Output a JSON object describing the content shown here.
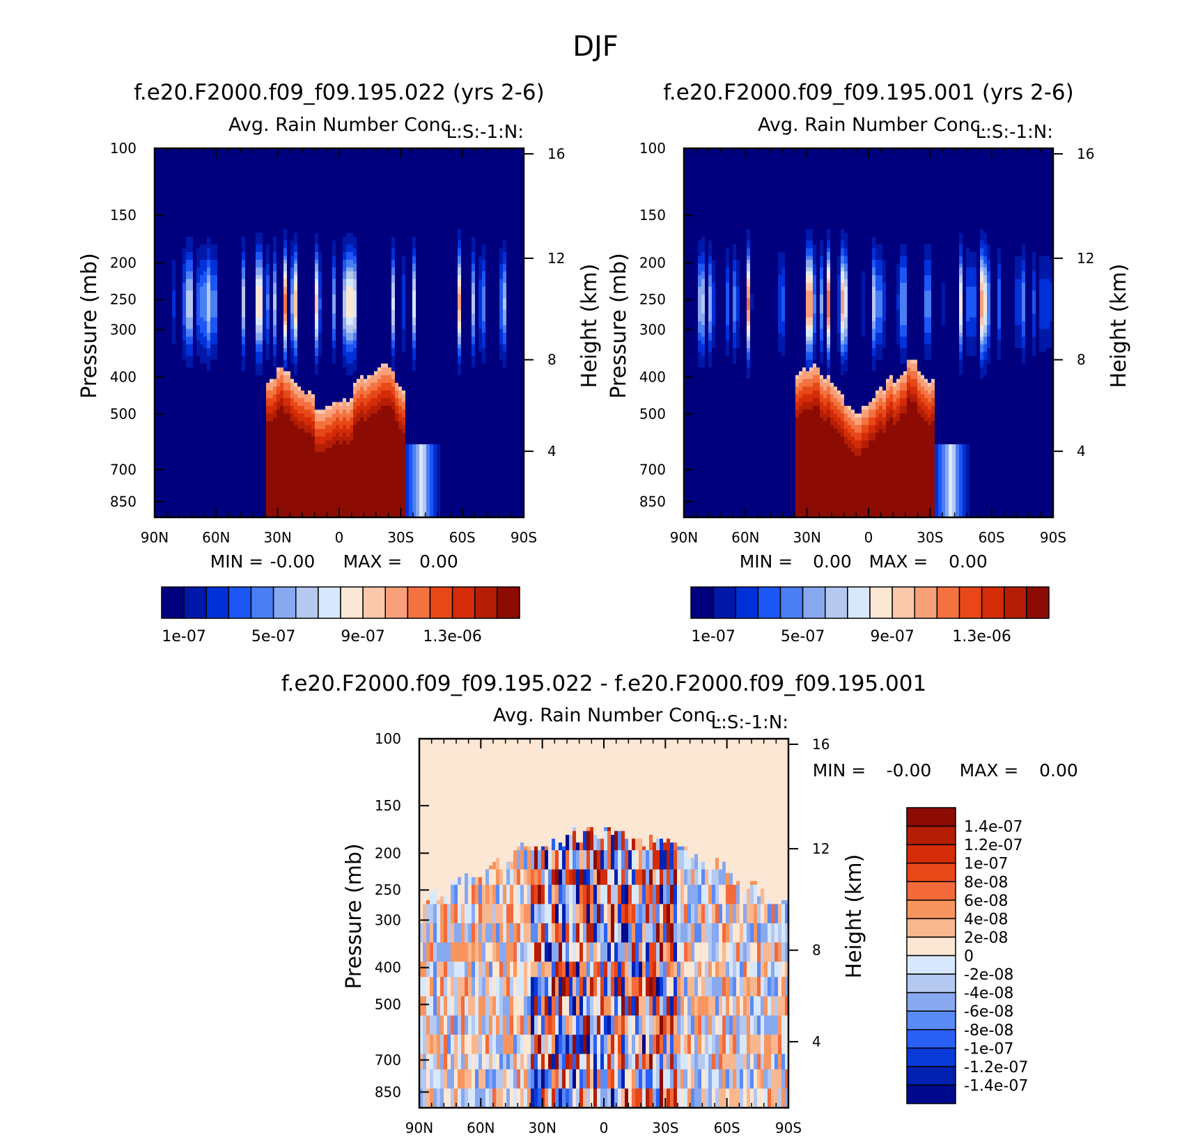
{
  "figure": {
    "title": "DJF"
  },
  "colors": {
    "abs_scale": [
      "#00007f",
      "#0018a8",
      "#0030d8",
      "#1c56f4",
      "#4a7ef4",
      "#88a8f0",
      "#b4c8f0",
      "#d8e8fc",
      "#fce6d4",
      "#fcc8ac",
      "#f8a07a",
      "#f47240",
      "#e84818",
      "#d42c08",
      "#b41e04",
      "#8c0c04"
    ],
    "diff_scale": [
      "#8c0c04",
      "#b41e04",
      "#d42c08",
      "#e84818",
      "#f46a3a",
      "#f8955e",
      "#f9b790",
      "#fce6d4",
      "#d8e8fc",
      "#b4c8f0",
      "#88a8f0",
      "#5a8af4",
      "#2a60f4",
      "#0a3ad8",
      "#0020b0",
      "#000a8c"
    ]
  },
  "chart_data": [
    {
      "type": "heatmap",
      "title": "f.e20.F2000.f09_f09.195.022 (yrs 2-6)",
      "subtitle": "Avg. Rain Number Conc.",
      "corner_label": "L:S:-1:N:",
      "xlabel": "",
      "ylabel": "Pressure (mb)",
      "ylabel_right": "Height (km)",
      "x_ticks": [
        "90N",
        "60N",
        "30N",
        "0",
        "30S",
        "60S",
        "90S"
      ],
      "y_ticks": [
        "100",
        "150",
        "200",
        "250",
        "300",
        "400",
        "500",
        "700",
        "850"
      ],
      "y_ticks_right": [
        "16",
        "12",
        "8",
        "4"
      ],
      "min_label": "MIN =",
      "min_value": "-0.00",
      "max_label": "MAX =",
      "max_value": "0.00",
      "colorbar_labels": [
        "1e-07",
        "5e-07",
        "9e-07",
        "1.3e-06"
      ]
    },
    {
      "type": "heatmap",
      "title": "f.e20.F2000.f09_f09.195.001 (yrs 2-6)",
      "subtitle": "Avg. Rain Number Conc.",
      "corner_label": "L:S:-1:N:",
      "xlabel": "",
      "ylabel": "Pressure (mb)",
      "ylabel_right": "Height (km)",
      "x_ticks": [
        "90N",
        "60N",
        "30N",
        "0",
        "30S",
        "60S",
        "90S"
      ],
      "y_ticks": [
        "100",
        "150",
        "200",
        "250",
        "300",
        "400",
        "500",
        "700",
        "850"
      ],
      "y_ticks_right": [
        "16",
        "12",
        "8",
        "4"
      ],
      "min_label": "MIN =",
      "min_value": "0.00",
      "max_label": "MAX =",
      "max_value": "0.00",
      "colorbar_labels": [
        "1e-07",
        "5e-07",
        "9e-07",
        "1.3e-06"
      ]
    },
    {
      "type": "heatmap",
      "title": "f.e20.F2000.f09_f09.195.022 - f.e20.F2000.f09_f09.195.001",
      "subtitle": "Avg. Rain Number Conc.",
      "corner_label": "L:S:-1:N:",
      "xlabel": "",
      "ylabel": "Pressure (mb)",
      "ylabel_right": "Height (km)",
      "x_ticks": [
        "90N",
        "60N",
        "30N",
        "0",
        "30S",
        "60S",
        "90S"
      ],
      "y_ticks": [
        "100",
        "150",
        "200",
        "250",
        "300",
        "400",
        "500",
        "700",
        "850"
      ],
      "y_ticks_right": [
        "16",
        "12",
        "8",
        "4"
      ],
      "min_label": "MIN =",
      "min_value": "-0.00",
      "max_label": "MAX =",
      "max_value": "0.00",
      "colorbar_labels": [
        "1.4e-07",
        "1.2e-07",
        "1e-07",
        "8e-08",
        "6e-08",
        "4e-08",
        "2e-08",
        "0",
        "-2e-08",
        "-4e-08",
        "-6e-08",
        "-8e-08",
        "-1e-07",
        "-1.2e-07",
        "-1.4e-07"
      ]
    }
  ]
}
